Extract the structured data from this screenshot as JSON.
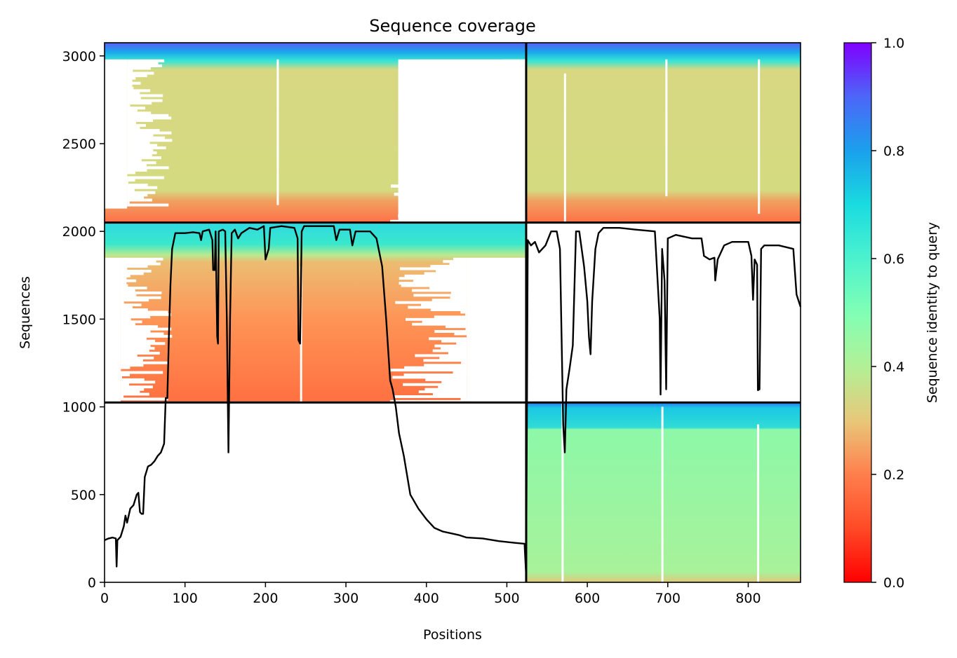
{
  "chart_data": {
    "type": "heatmap",
    "title": "Sequence coverage",
    "xlabel": "Positions",
    "ylabel": "Sequences",
    "xlim": [
      0,
      865
    ],
    "ylim": [
      0,
      3075
    ],
    "x_ticks": [
      {
        "value": 0,
        "label": "0"
      },
      {
        "value": 100,
        "label": "100"
      },
      {
        "value": 200,
        "label": "200"
      },
      {
        "value": 300,
        "label": "300"
      },
      {
        "value": 400,
        "label": "400"
      },
      {
        "value": 500,
        "label": "500"
      },
      {
        "value": 600,
        "label": "600"
      },
      {
        "value": 700,
        "label": "700"
      },
      {
        "value": 800,
        "label": "800"
      }
    ],
    "y_ticks": [
      {
        "value": 0,
        "label": "0"
      },
      {
        "value": 500,
        "label": "500"
      },
      {
        "value": 1000,
        "label": "1000"
      },
      {
        "value": 1500,
        "label": "1500"
      },
      {
        "value": 2000,
        "label": "2000"
      },
      {
        "value": 2500,
        "label": "2500"
      },
      {
        "value": 3000,
        "label": "3000"
      }
    ],
    "colorbar": {
      "label": "Sequence identity to query",
      "range": [
        0,
        1
      ],
      "ticks": [
        {
          "value": 0.0,
          "label": "0.0"
        },
        {
          "value": 0.2,
          "label": "0.2"
        },
        {
          "value": 0.4,
          "label": "0.4"
        },
        {
          "value": 0.6,
          "label": "0.6"
        },
        {
          "value": 0.8,
          "label": "0.8"
        },
        {
          "value": 1.0,
          "label": "1.0"
        }
      ],
      "colormap": "rainbow_r"
    },
    "chain_boundaries_x": [
      524
    ],
    "block_boundaries_y": [
      1025,
      2050
    ],
    "blocks": [
      {
        "x_range": [
          0,
          524
        ],
        "y_range": [
          2050,
          3075
        ],
        "identity_top": 0.75,
        "identity_body": 0.38,
        "identity_bottom": 0.18
      },
      {
        "x_range": [
          524,
          865
        ],
        "y_range": [
          2050,
          3075
        ],
        "identity_top": 0.75,
        "identity_body": 0.38,
        "identity_bottom": 0.22
      },
      {
        "x_range": [
          0,
          524
        ],
        "y_range": [
          1025,
          2050
        ],
        "identity_top": 0.68,
        "identity_body": 0.22,
        "identity_bottom": 0.18
      },
      {
        "x_range": [
          524,
          865
        ],
        "y_range": [
          0,
          1025
        ],
        "identity_top": 0.68,
        "identity_body": 0.46,
        "identity_bottom": 0.32
      }
    ],
    "coverage_line": [
      [
        0,
        240
      ],
      [
        5,
        250
      ],
      [
        10,
        255
      ],
      [
        14,
        250
      ],
      [
        15,
        90
      ],
      [
        16,
        240
      ],
      [
        20,
        260
      ],
      [
        24,
        320
      ],
      [
        26,
        380
      ],
      [
        28,
        340
      ],
      [
        32,
        420
      ],
      [
        36,
        440
      ],
      [
        40,
        500
      ],
      [
        42,
        510
      ],
      [
        44,
        400
      ],
      [
        46,
        390
      ],
      [
        48,
        390
      ],
      [
        50,
        600
      ],
      [
        54,
        660
      ],
      [
        58,
        670
      ],
      [
        62,
        690
      ],
      [
        66,
        720
      ],
      [
        70,
        740
      ],
      [
        74,
        790
      ],
      [
        76,
        1050
      ],
      [
        78,
        1050
      ],
      [
        80,
        1400
      ],
      [
        82,
        1700
      ],
      [
        84,
        1900
      ],
      [
        88,
        1990
      ],
      [
        100,
        1990
      ],
      [
        110,
        1995
      ],
      [
        118,
        1990
      ],
      [
        120,
        1950
      ],
      [
        122,
        2000
      ],
      [
        130,
        2010
      ],
      [
        134,
        1950
      ],
      [
        135,
        1780
      ],
      [
        137,
        1780
      ],
      [
        138,
        2000
      ],
      [
        140,
        1400
      ],
      [
        141,
        1360
      ],
      [
        142,
        2000
      ],
      [
        147,
        2010
      ],
      [
        150,
        2000
      ],
      [
        152,
        1500
      ],
      [
        154,
        740
      ],
      [
        156,
        1500
      ],
      [
        158,
        1990
      ],
      [
        162,
        2010
      ],
      [
        166,
        1960
      ],
      [
        170,
        1990
      ],
      [
        180,
        2020
      ],
      [
        190,
        2010
      ],
      [
        198,
        2030
      ],
      [
        200,
        1840
      ],
      [
        204,
        1900
      ],
      [
        206,
        2020
      ],
      [
        220,
        2030
      ],
      [
        236,
        2020
      ],
      [
        240,
        1960
      ],
      [
        241,
        1380
      ],
      [
        243,
        1360
      ],
      [
        245,
        2000
      ],
      [
        248,
        2030
      ],
      [
        270,
        2030
      ],
      [
        285,
        2030
      ],
      [
        288,
        1950
      ],
      [
        292,
        2010
      ],
      [
        305,
        2010
      ],
      [
        308,
        1920
      ],
      [
        312,
        2000
      ],
      [
        330,
        2000
      ],
      [
        338,
        1960
      ],
      [
        345,
        1800
      ],
      [
        350,
        1500
      ],
      [
        355,
        1150
      ],
      [
        358,
        1100
      ],
      [
        362,
        1000
      ],
      [
        366,
        850
      ],
      [
        372,
        720
      ],
      [
        380,
        500
      ],
      [
        390,
        420
      ],
      [
        400,
        360
      ],
      [
        410,
        310
      ],
      [
        420,
        290
      ],
      [
        440,
        270
      ],
      [
        450,
        255
      ],
      [
        470,
        250
      ],
      [
        490,
        235
      ],
      [
        510,
        225
      ],
      [
        522,
        220
      ],
      [
        524,
        40
      ],
      [
        526,
        1950
      ],
      [
        530,
        1920
      ],
      [
        535,
        1940
      ],
      [
        540,
        1880
      ],
      [
        548,
        1920
      ],
      [
        555,
        2000
      ],
      [
        562,
        2000
      ],
      [
        566,
        1900
      ],
      [
        568,
        1400
      ],
      [
        570,
        900
      ],
      [
        572,
        740
      ],
      [
        574,
        1100
      ],
      [
        578,
        1220
      ],
      [
        582,
        1350
      ],
      [
        586,
        2000
      ],
      [
        590,
        2000
      ],
      [
        596,
        1800
      ],
      [
        600,
        1600
      ],
      [
        602,
        1400
      ],
      [
        604,
        1300
      ],
      [
        606,
        1600
      ],
      [
        610,
        1900
      ],
      [
        614,
        1990
      ],
      [
        620,
        2020
      ],
      [
        640,
        2020
      ],
      [
        660,
        2010
      ],
      [
        684,
        2000
      ],
      [
        690,
        1500
      ],
      [
        691,
        1070
      ],
      [
        693,
        1900
      ],
      [
        696,
        1720
      ],
      [
        698,
        1100
      ],
      [
        700,
        1960
      ],
      [
        710,
        1980
      ],
      [
        730,
        1960
      ],
      [
        742,
        1960
      ],
      [
        745,
        1860
      ],
      [
        752,
        1840
      ],
      [
        758,
        1850
      ],
      [
        759,
        1720
      ],
      [
        762,
        1840
      ],
      [
        770,
        1920
      ],
      [
        780,
        1940
      ],
      [
        790,
        1940
      ],
      [
        800,
        1940
      ],
      [
        804,
        1860
      ],
      [
        806,
        1610
      ],
      [
        808,
        1840
      ],
      [
        811,
        1810
      ],
      [
        812,
        1095
      ],
      [
        814,
        1100
      ],
      [
        816,
        1900
      ],
      [
        820,
        1920
      ],
      [
        838,
        1920
      ],
      [
        856,
        1900
      ],
      [
        860,
        1640
      ],
      [
        865,
        1570
      ]
    ]
  }
}
